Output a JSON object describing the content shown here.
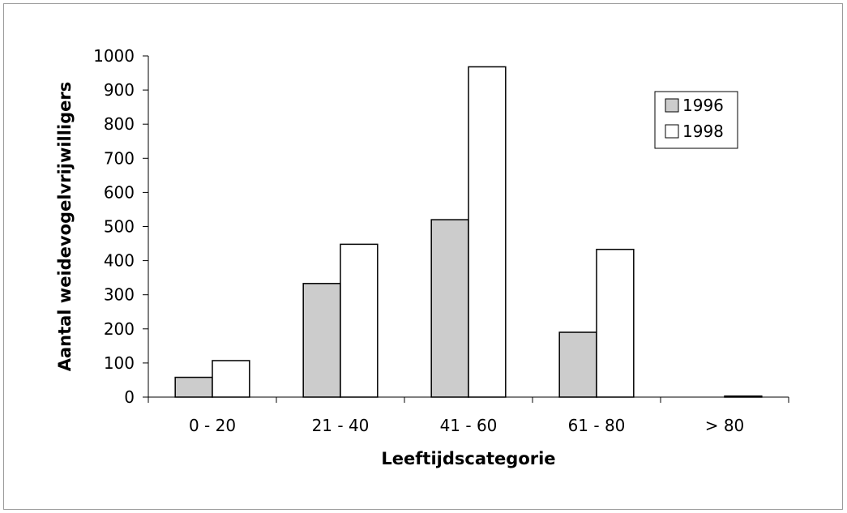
{
  "chart_data": {
    "type": "bar",
    "title": "",
    "xlabel": "Leeftijdscategorie",
    "ylabel": "Aantal weidevogelvrijwilligers",
    "categories": [
      "0 - 20",
      "21 - 40",
      "41 - 60",
      "61 - 80",
      "> 80"
    ],
    "series": [
      {
        "name": "1996",
        "values": [
          58,
          333,
          520,
          190,
          0
        ],
        "color": "#cccccc"
      },
      {
        "name": "1998",
        "values": [
          107,
          448,
          968,
          433,
          3
        ],
        "color": "#ffffff"
      }
    ],
    "ylim": [
      0,
      1000
    ],
    "yticks": [
      "0",
      "100",
      "200",
      "300",
      "400",
      "500",
      "600",
      "700",
      "800",
      "900",
      "1000"
    ],
    "grid": false,
    "legend_position": "top-right"
  }
}
